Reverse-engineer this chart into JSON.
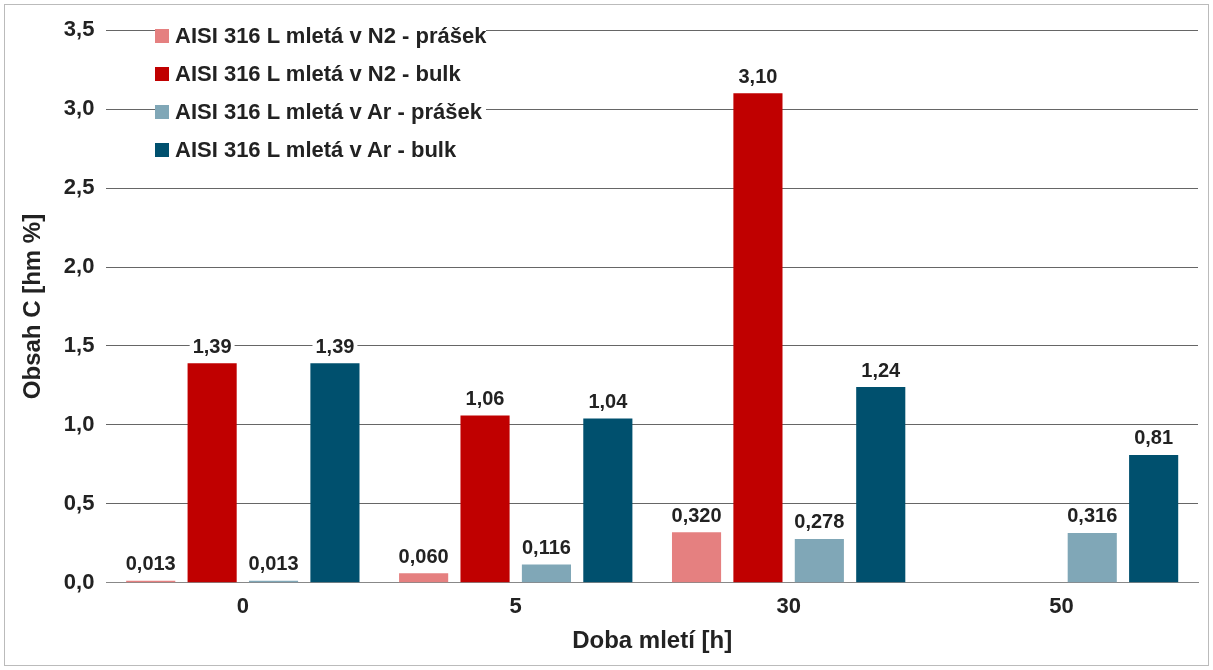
{
  "chart_data": {
    "type": "bar",
    "xlabel": "Doba mletí [h]",
    "ylabel": "Obsah C [hm %]",
    "categories": [
      "0",
      "5",
      "30",
      "50"
    ],
    "series": [
      {
        "name": "AISI 316 L mletá v N2 - prášek",
        "color": "#e58080",
        "values": [
          0.013,
          0.06,
          0.32,
          null
        ],
        "value_labels": [
          "0,013",
          "0,060",
          "0,320",
          null
        ]
      },
      {
        "name": "AISI 316 L mletá v N2 - bulk",
        "color": "#c00000",
        "values": [
          1.39,
          1.06,
          3.1,
          null
        ],
        "value_labels": [
          "1,39",
          "1,06",
          "3,10",
          null
        ]
      },
      {
        "name": "AISI 316 L mletá v Ar - prášek",
        "color": "#80a7b7",
        "values": [
          0.013,
          0.116,
          0.278,
          0.316
        ],
        "value_labels": [
          "0,013",
          "0,116",
          "0,278",
          "0,316"
        ]
      },
      {
        "name": "AISI 316 L mletá v Ar - bulk",
        "color": "#00506e",
        "values": [
          1.39,
          1.04,
          1.24,
          0.81
        ],
        "value_labels": [
          "1,39",
          "1,04",
          "1,24",
          "0,81"
        ]
      }
    ],
    "ylim": [
      0,
      3.5
    ],
    "yticks": [
      {
        "value": 0,
        "label": "0,0"
      },
      {
        "value": 0.5,
        "label": "0,5"
      },
      {
        "value": 1,
        "label": "1,0"
      },
      {
        "value": 1.5,
        "label": "1,5"
      },
      {
        "value": 2,
        "label": "2,0"
      },
      {
        "value": 2.5,
        "label": "2,5"
      },
      {
        "value": 3,
        "label": "3,0"
      },
      {
        "value": 3.5,
        "label": "3,5"
      }
    ],
    "grid": "y",
    "legend": "top left"
  }
}
